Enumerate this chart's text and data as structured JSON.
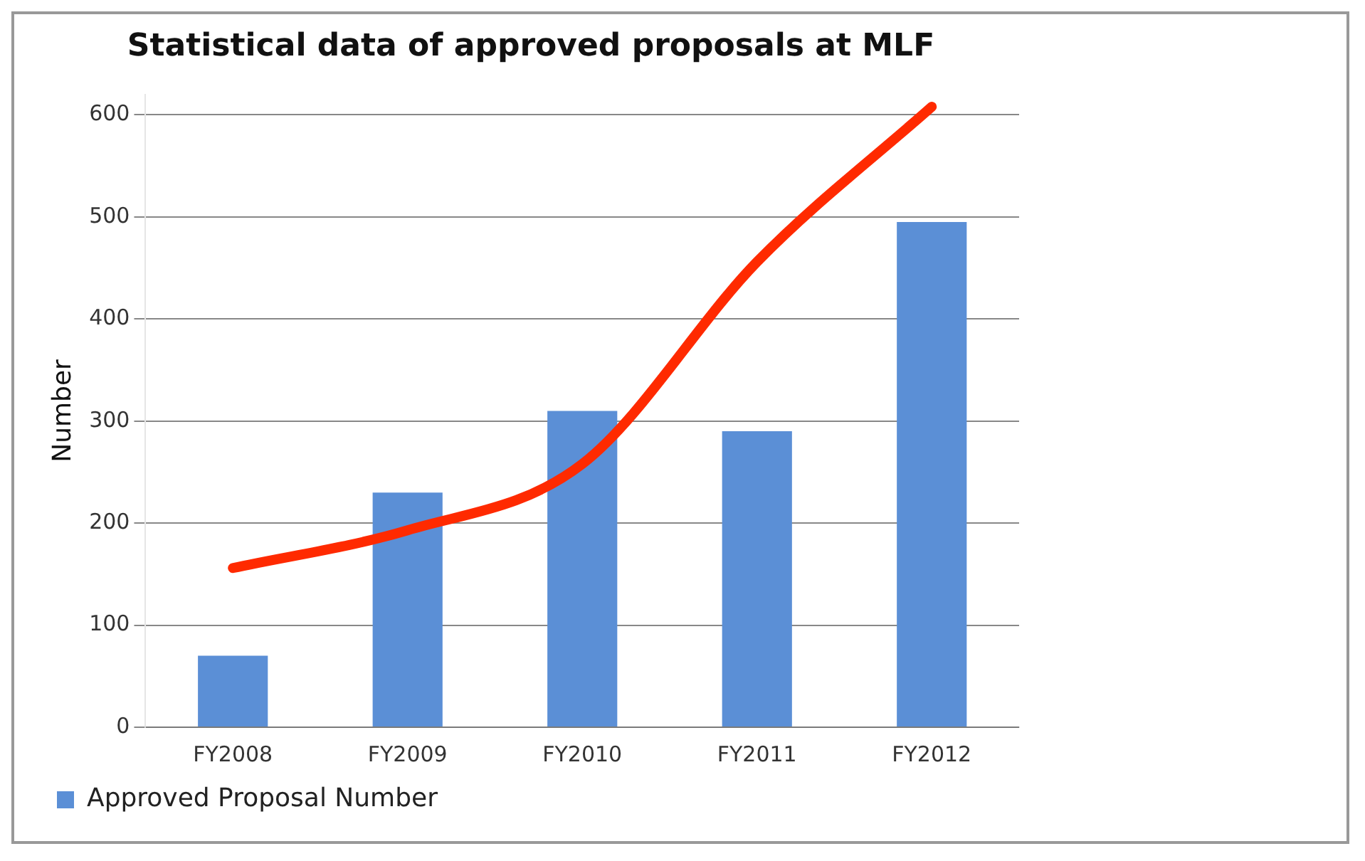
{
  "chart_data": {
    "type": "bar",
    "title": "Statistical data of approved proposals at MLF",
    "ylabel": "Number",
    "categories": [
      "FY2008",
      "FY2009",
      "FY2010",
      "FY2011",
      "FY2012"
    ],
    "series": [
      {
        "name": "Approved Proposal Number",
        "color": "#5b8fd6",
        "values": [
          70,
          230,
          310,
          290,
          495
        ]
      },
      {
        "type": "line",
        "color": "#ff2a00",
        "values": [
          156,
          193,
          258,
          456,
          608
        ]
      }
    ],
    "ylim": [
      0,
      620
    ],
    "yticks": [
      0,
      100,
      200,
      300,
      400,
      500,
      600
    ],
    "grid": "y",
    "legend": "bottom left",
    "marker": "none"
  }
}
